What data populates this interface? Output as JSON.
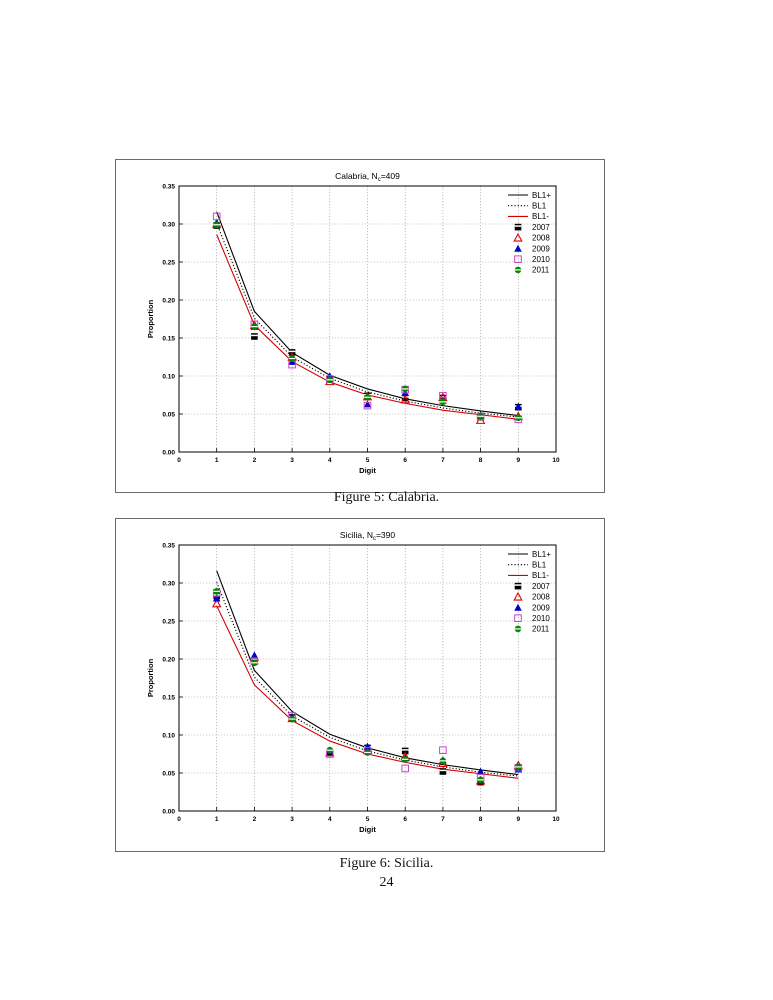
{
  "page_number": "24",
  "chart_data": [
    {
      "type": "line",
      "title_main": "Calabria, N",
      "title_sub": "c",
      "title_rest": "=409",
      "xlabel": "Digit",
      "ylabel": "Proportion",
      "xlim": [
        0,
        10
      ],
      "ylim": [
        0,
        0.35
      ],
      "xticks": [
        "0",
        "1",
        "2",
        "3",
        "4",
        "5",
        "6",
        "7",
        "8",
        "9",
        "10"
      ],
      "yticks": [
        "0.00",
        "0.05",
        "0.10",
        "0.15",
        "0.20",
        "0.25",
        "0.30",
        "0.35"
      ],
      "grid": true,
      "legend_position": "top-right",
      "x": [
        1,
        2,
        3,
        4,
        5,
        6,
        7,
        8,
        9
      ],
      "lines": [
        {
          "name": "BL1+",
          "style": "solid",
          "color": "#000000",
          "values": [
            0.316,
            0.185,
            0.131,
            0.101,
            0.083,
            0.07,
            0.061,
            0.054,
            0.048
          ]
        },
        {
          "name": "BL1",
          "style": "dotted",
          "color": "#000000",
          "values": [
            0.301,
            0.176,
            0.125,
            0.097,
            0.079,
            0.067,
            0.058,
            0.051,
            0.046
          ]
        },
        {
          "name": "BL1-",
          "style": "solid",
          "color": "#d40000",
          "values": [
            0.286,
            0.167,
            0.119,
            0.092,
            0.075,
            0.064,
            0.055,
            0.049,
            0.043
          ]
        }
      ],
      "markers": [
        {
          "name": "2007",
          "shape": "square-filled",
          "color": "#000000",
          "values": [
            0.298,
            0.152,
            0.131,
            0.096,
            0.074,
            0.071,
            0.071,
            0.046,
            0.059
          ]
        },
        {
          "name": "2008",
          "shape": "triangle-open",
          "color": "#e00000",
          "values": [
            0.3,
            0.167,
            0.125,
            0.093,
            0.073,
            0.069,
            0.072,
            0.042,
            0.047
          ]
        },
        {
          "name": "2009",
          "shape": "triangle-filled",
          "color": "#0000cc",
          "values": [
            0.302,
            0.165,
            0.119,
            0.1,
            0.063,
            0.078,
            0.068,
            0.049,
            0.06
          ]
        },
        {
          "name": "2010",
          "shape": "square-open",
          "color": "#cc44cc",
          "values": [
            0.31,
            0.168,
            0.115,
            0.096,
            0.061,
            0.082,
            0.074,
            0.047,
            0.043
          ]
        },
        {
          "name": "2011",
          "shape": "circle-filled",
          "color": "#008800",
          "values": [
            0.299,
            0.165,
            0.123,
            0.095,
            0.072,
            0.083,
            0.066,
            0.047,
            0.045
          ]
        }
      ]
    },
    {
      "type": "line",
      "title_main": "Sicilia, N",
      "title_sub": "c",
      "title_rest": "=390",
      "xlabel": "Digit",
      "ylabel": "Proportion",
      "xlim": [
        0,
        10
      ],
      "ylim": [
        0,
        0.35
      ],
      "xticks": [
        "0",
        "1",
        "2",
        "3",
        "4",
        "5",
        "6",
        "7",
        "8",
        "9",
        "10"
      ],
      "yticks": [
        "0.00",
        "0.05",
        "0.10",
        "0.15",
        "0.20",
        "0.25",
        "0.30",
        "0.35"
      ],
      "grid": true,
      "legend_position": "top-right",
      "x": [
        1,
        2,
        3,
        4,
        5,
        6,
        7,
        8,
        9
      ],
      "lines": [
        {
          "name": "BL1+",
          "style": "solid",
          "color": "#000000",
          "values": [
            0.316,
            0.185,
            0.131,
            0.101,
            0.083,
            0.07,
            0.061,
            0.054,
            0.048
          ]
        },
        {
          "name": "BL1",
          "style": "dotted",
          "color": "#000000",
          "values": [
            0.301,
            0.176,
            0.125,
            0.097,
            0.079,
            0.067,
            0.058,
            0.051,
            0.046
          ]
        },
        {
          "name": "BL1-",
          "style": "solid",
          "color": "#d40000",
          "values": [
            0.27,
            0.166,
            0.119,
            0.092,
            0.075,
            0.064,
            0.055,
            0.049,
            0.043
          ]
        }
      ],
      "markers": [
        {
          "name": "2007",
          "shape": "square-filled",
          "color": "#000000",
          "values": [
            0.283,
            0.198,
            0.123,
            0.077,
            0.083,
            0.079,
            0.052,
            0.038,
            0.055
          ]
        },
        {
          "name": "2008",
          "shape": "triangle-open",
          "color": "#e00000",
          "values": [
            0.273,
            0.203,
            0.122,
            0.077,
            0.08,
            0.072,
            0.063,
            0.04,
            0.06
          ]
        },
        {
          "name": "2009",
          "shape": "triangle-filled",
          "color": "#0000cc",
          "values": [
            0.28,
            0.205,
            0.124,
            0.079,
            0.085,
            0.07,
            0.067,
            0.052,
            0.055
          ]
        },
        {
          "name": "2010",
          "shape": "square-open",
          "color": "#cc44cc",
          "values": [
            0.287,
            0.197,
            0.125,
            0.075,
            0.079,
            0.056,
            0.08,
            0.044,
            0.057
          ]
        },
        {
          "name": "2011",
          "shape": "circle-filled",
          "color": "#008800",
          "values": [
            0.289,
            0.195,
            0.121,
            0.08,
            0.077,
            0.068,
            0.066,
            0.041,
            0.058
          ]
        }
      ]
    }
  ],
  "captions": [
    "Figure 5:  Calabria.",
    "Figure 6:  Sicilia."
  ]
}
